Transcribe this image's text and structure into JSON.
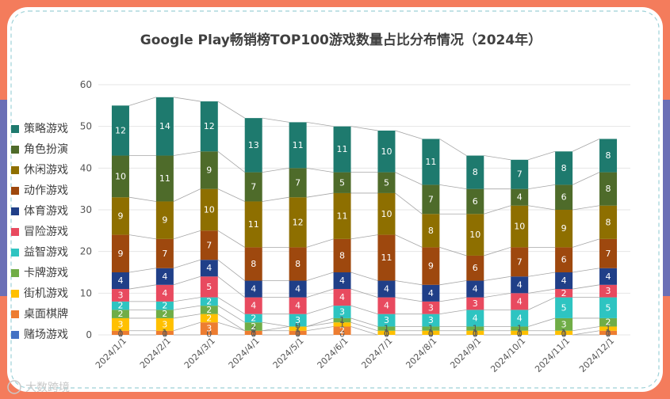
{
  "chart_data": {
    "type": "bar",
    "stacked": true,
    "title": "Google Play畅销榜TOP100游戏数量占比分布情况（2024年）",
    "xlabel": "",
    "ylabel": "",
    "ylim": [
      0,
      60
    ],
    "yticks": [
      0,
      10,
      20,
      30,
      40,
      50,
      60
    ],
    "grid": true,
    "legend_position": "left",
    "categories": [
      "2024/1/1",
      "2024/2/1",
      "2024/3/1",
      "2024/4/1",
      "2024/5/1",
      "2024/6/1",
      "2024/7/1",
      "2024/8/1",
      "2024/9/1",
      "2024/10/1",
      "2024/11/1",
      "2024/12/1"
    ],
    "series": [
      {
        "name": "赌场游戏",
        "color": "#4472c4",
        "values": [
          0,
          0,
          0,
          0,
          0,
          0,
          0,
          0,
          0,
          0,
          0,
          0
        ]
      },
      {
        "name": "桌面棋牌",
        "color": "#ed7d31",
        "values": [
          1,
          1,
          3,
          1,
          1,
          2,
          0,
          0,
          0,
          0,
          0,
          1
        ]
      },
      {
        "name": "街机游戏",
        "color": "#ffc000",
        "values": [
          3,
          3,
          2,
          0,
          1,
          1,
          1,
          1,
          1,
          1,
          1,
          1
        ]
      },
      {
        "name": "卡牌游戏",
        "color": "#70ad47",
        "values": [
          2,
          2,
          2,
          2,
          0,
          1,
          1,
          1,
          1,
          1,
          3,
          2
        ]
      },
      {
        "name": "益智游戏",
        "color": "#2ec4c1",
        "values": [
          2,
          2,
          2,
          2,
          3,
          3,
          3,
          3,
          4,
          4,
          5,
          5
        ]
      },
      {
        "name": "冒险游戏",
        "color": "#e84a5f",
        "values": [
          3,
          4,
          5,
          4,
          4,
          4,
          4,
          3,
          3,
          4,
          2,
          3
        ]
      },
      {
        "name": "体育游戏",
        "color": "#203f88",
        "values": [
          4,
          4,
          4,
          4,
          4,
          4,
          4,
          4,
          4,
          4,
          4,
          4
        ]
      },
      {
        "name": "动作游戏",
        "color": "#9e480e",
        "values": [
          9,
          7,
          7,
          8,
          8,
          8,
          11,
          9,
          6,
          7,
          6,
          7
        ]
      },
      {
        "name": "休闲游戏",
        "color": "#8e6f00",
        "values": [
          9,
          9,
          10,
          11,
          12,
          11,
          10,
          8,
          10,
          10,
          9,
          8
        ]
      },
      {
        "name": "角色扮演",
        "color": "#4e6b2a",
        "values": [
          10,
          11,
          9,
          7,
          7,
          5,
          5,
          7,
          6,
          4,
          6,
          8
        ]
      },
      {
        "name": "策略游戏",
        "color": "#1e7a6e",
        "values": [
          12,
          14,
          12,
          13,
          11,
          11,
          10,
          11,
          8,
          7,
          8,
          8
        ]
      }
    ],
    "legend_order": [
      "策略游戏",
      "角色扮演",
      "休闲游戏",
      "动作游戏",
      "体育游戏",
      "冒险游戏",
      "益智游戏",
      "卡牌游戏",
      "街机游戏",
      "桌面棋牌",
      "赌场游戏"
    ]
  },
  "watermark": "大数跨境",
  "colors": {
    "outer_border": "#f47c5c",
    "side_band": "#6b6fb6",
    "dash_border": "#9ed1d8",
    "gridline": "#e6e6e6",
    "connector": "#a6a6a6"
  }
}
